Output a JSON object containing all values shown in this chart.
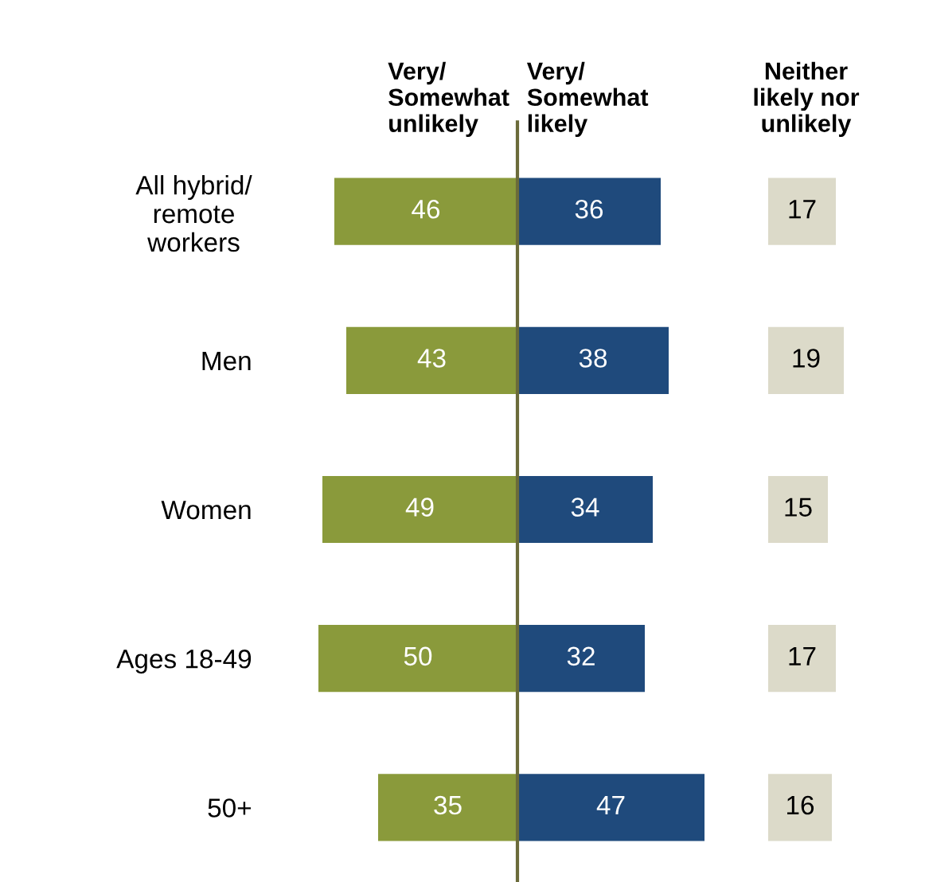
{
  "chart_data": [
    {
      "type": "bar",
      "orientation": "horizontal",
      "categories": [
        "All hybrid/\nremote\nworkers",
        "Men",
        "Women",
        "Ages 18-49",
        "50+"
      ],
      "xlim": [
        50,
        0
      ],
      "tick_labels": "y",
      "data_labels": true,
      "series": [
        {
          "name": "Very/\nSomewhat\nunlikely",
          "color": "#8a9a3b",
          "values": [
            46,
            43,
            49,
            50,
            35
          ]
        }
      ]
    },
    {
      "type": "bar",
      "orientation": "horizontal",
      "categories": [
        null,
        null,
        null,
        null,
        null
      ],
      "tick_labels": false,
      "data_labels": true,
      "series": [
        {
          "name": "Very/\nSomewhat\nlikely",
          "color": "#1f4a7c",
          "values": [
            36,
            38,
            34,
            32,
            47
          ]
        }
      ],
      "ref_lines": [
        {
          "axis": "x",
          "value": 0,
          "color": "#6b6b3a"
        }
      ]
    },
    {
      "type": "bar",
      "orientation": "horizontal",
      "categories": [
        null,
        null,
        null,
        null,
        null
      ],
      "tick_labels": false,
      "data_labels": true,
      "series": [
        {
          "name": "Neither\nlikely nor\nunlikely",
          "color": "#dcdac9",
          "values": [
            17,
            19,
            15,
            17,
            16
          ]
        }
      ]
    }
  ]
}
